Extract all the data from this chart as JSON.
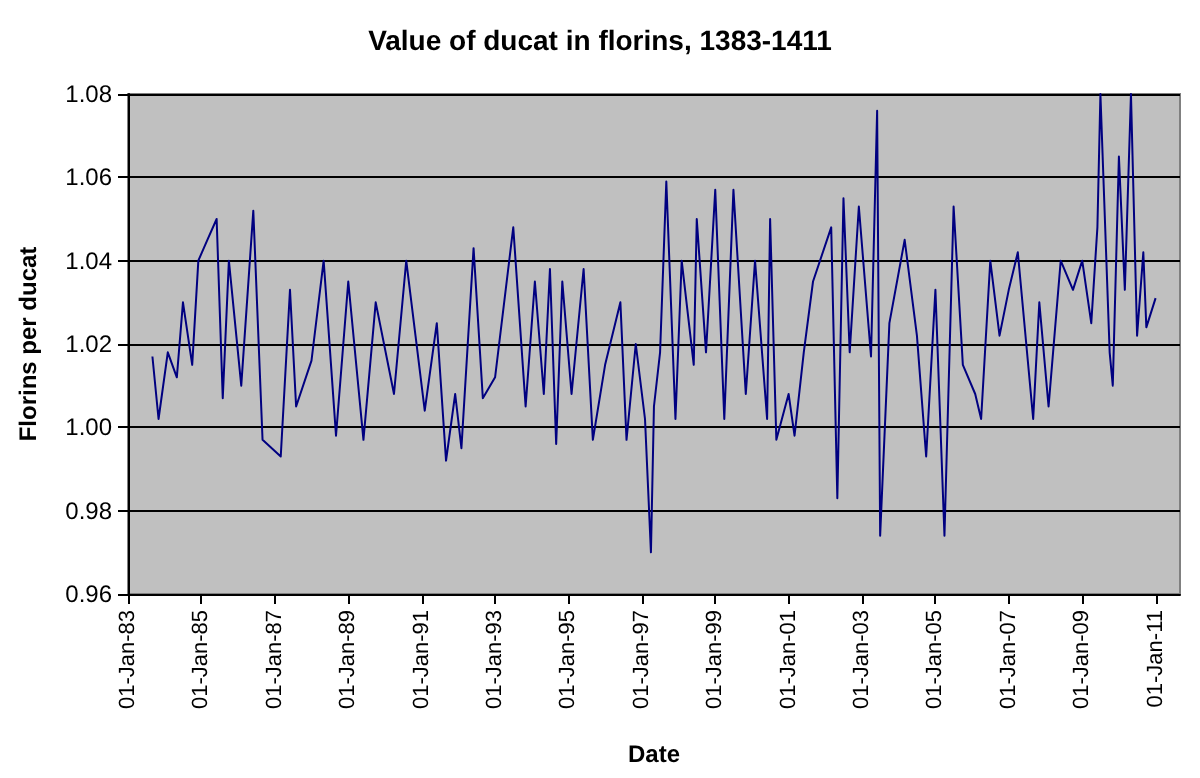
{
  "chart_data": {
    "type": "line",
    "title": "Value of ducat in florins, 1383-1411",
    "xlabel": "Date",
    "ylabel": "Florins per ducat",
    "x": [
      "1383-09",
      "1383-11",
      "1384-02",
      "1384-05",
      "1384-07",
      "1384-10",
      "1384-12",
      "1385-03",
      "1385-06",
      "1385-08",
      "1385-10",
      "1386-02",
      "1386-06",
      "1386-09",
      "1387-03",
      "1387-06",
      "1387-08",
      "1388-01",
      "1388-05",
      "1388-09",
      "1389-01",
      "1389-06",
      "1389-10",
      "1390-04",
      "1390-08",
      "1390-11",
      "1391-02",
      "1391-06",
      "1391-09",
      "1391-12",
      "1392-02",
      "1392-06",
      "1392-09",
      "1393-01",
      "1393-07",
      "1393-11",
      "1394-02",
      "1394-05",
      "1394-07",
      "1394-09",
      "1394-11",
      "1395-02",
      "1395-06",
      "1395-09",
      "1396-01",
      "1396-06",
      "1396-08",
      "1396-11",
      "1397-02",
      "1397-04",
      "1397-05",
      "1397-07",
      "1397-09",
      "1397-12",
      "1398-02",
      "1398-06",
      "1398-07",
      "1398-10",
      "1399-01",
      "1399-04",
      "1399-07",
      "1399-11",
      "1400-02",
      "1400-06",
      "1400-07",
      "1400-09",
      "1401-01",
      "1401-03",
      "1401-06",
      "1401-09",
      "1402-03",
      "1402-05",
      "1402-07",
      "1402-09",
      "1402-12",
      "1403-04",
      "1403-06",
      "1403-07",
      "1403-10",
      "1404-03",
      "1404-07",
      "1404-10",
      "1405-01",
      "1405-04",
      "1405-07",
      "1405-10",
      "1406-02",
      "1406-04",
      "1406-07",
      "1406-10",
      "1407-01",
      "1407-04",
      "1407-09",
      "1407-11",
      "1408-02",
      "1408-06",
      "1408-10",
      "1409-01",
      "1409-04",
      "1409-06",
      "1409-07",
      "1409-10",
      "1409-11",
      "1410-01",
      "1410-03",
      "1410-05",
      "1410-07",
      "1410-09",
      "1410-10",
      "1411-01"
    ],
    "series": [
      {
        "color": "#000080",
        "values": [
          1.017,
          1.002,
          1.018,
          1.012,
          1.03,
          1.015,
          1.04,
          1.045,
          1.05,
          1.007,
          1.04,
          1.01,
          1.052,
          0.997,
          0.993,
          1.033,
          1.005,
          1.016,
          1.04,
          0.998,
          1.035,
          0.997,
          1.03,
          1.008,
          1.04,
          1.022,
          1.004,
          1.025,
          0.992,
          1.008,
          0.995,
          1.043,
          1.007,
          1.012,
          1.048,
          1.005,
          1.035,
          1.008,
          1.038,
          0.996,
          1.035,
          1.008,
          1.038,
          0.997,
          1.015,
          1.03,
          0.997,
          1.02,
          1.002,
          0.97,
          1.005,
          1.018,
          1.059,
          1.002,
          1.04,
          1.015,
          1.05,
          1.018,
          1.057,
          1.002,
          1.057,
          1.008,
          1.04,
          1.002,
          1.05,
          0.997,
          1.008,
          0.998,
          1.018,
          1.035,
          1.048,
          0.983,
          1.055,
          1.018,
          1.053,
          1.017,
          1.076,
          0.974,
          1.025,
          1.045,
          1.022,
          0.993,
          1.033,
          0.974,
          1.053,
          1.015,
          1.008,
          1.002,
          1.04,
          1.022,
          1.033,
          1.042,
          1.002,
          1.03,
          1.005,
          1.04,
          1.033,
          1.04,
          1.025,
          1.048,
          1.08,
          1.018,
          1.01,
          1.065,
          1.033,
          1.08,
          1.022,
          1.042,
          1.024,
          1.031
        ]
      }
    ],
    "xlim": [
      "1383-01-01",
      "1411-09-01"
    ],
    "xticks": [
      {
        "value": "1383-01-01",
        "label": "01-Jan-83"
      },
      {
        "value": "1385-01-01",
        "label": "01-Jan-85"
      },
      {
        "value": "1387-01-01",
        "label": "01-Jan-87"
      },
      {
        "value": "1389-01-01",
        "label": "01-Jan-89"
      },
      {
        "value": "1391-01-01",
        "label": "01-Jan-91"
      },
      {
        "value": "1393-01-01",
        "label": "01-Jan-93"
      },
      {
        "value": "1395-01-01",
        "label": "01-Jan-95"
      },
      {
        "value": "1397-01-01",
        "label": "01-Jan-97"
      },
      {
        "value": "1399-01-01",
        "label": "01-Jan-99"
      },
      {
        "value": "1401-01-01",
        "label": "01-Jan-01"
      },
      {
        "value": "1403-01-01",
        "label": "01-Jan-03"
      },
      {
        "value": "1405-01-01",
        "label": "01-Jan-05"
      },
      {
        "value": "1407-01-01",
        "label": "01-Jan-07"
      },
      {
        "value": "1409-01-01",
        "label": "01-Jan-09"
      },
      {
        "value": "1411-01-01",
        "label": "01-Jan-11"
      }
    ],
    "ylim": [
      0.96,
      1.08
    ],
    "yticks": [
      {
        "value": 0.96,
        "label": "0.96"
      },
      {
        "value": 0.98,
        "label": "0.98"
      },
      {
        "value": 1,
        "label": "1.00"
      },
      {
        "value": 1.02,
        "label": "1.02"
      },
      {
        "value": 1.04,
        "label": "1.04"
      },
      {
        "value": 1.06,
        "label": "1.06"
      },
      {
        "value": 1.08,
        "label": "1.08"
      }
    ],
    "grid": "y",
    "marker": "none",
    "line_style": "solid"
  }
}
